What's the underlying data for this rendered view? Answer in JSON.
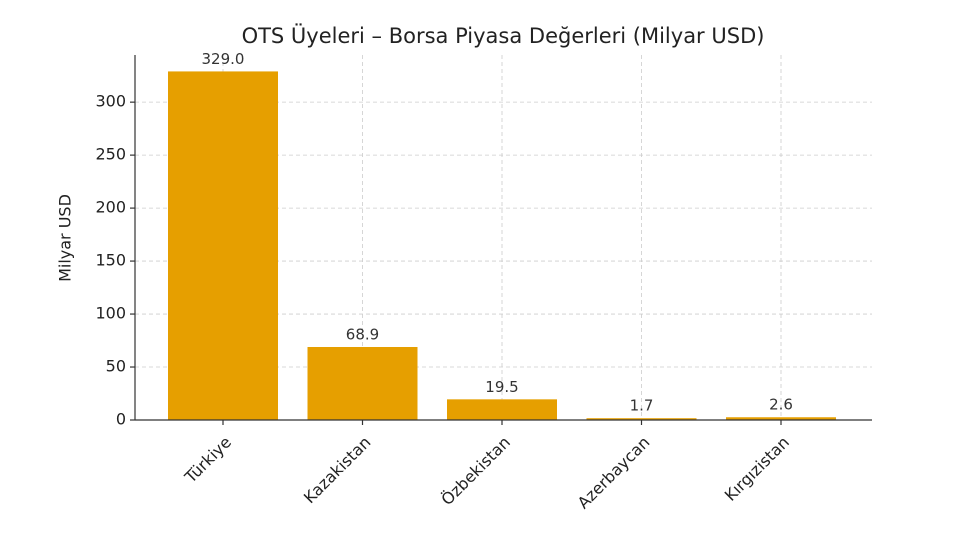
{
  "chart_data": {
    "type": "bar",
    "title": "OTS Üyeleri – Borsa Piyasa Değerleri (Milyar USD)",
    "y_label": "Milyar USD",
    "categories": [
      "Türkiye",
      "Kazakistan",
      "Özbekistan",
      "Azerbaycan",
      "Kırgızistan"
    ],
    "values": [
      329,
      68.9,
      19.5,
      1.7,
      2.6
    ],
    "value_labels": [
      "329.0",
      "68.9",
      "19.5",
      "1.7",
      "2.6"
    ],
    "color": "#e69f00",
    "ylim": [
      0,
      344.5
    ],
    "yticks": [
      0,
      50,
      100,
      150,
      200,
      250,
      300
    ],
    "grid": true
  }
}
